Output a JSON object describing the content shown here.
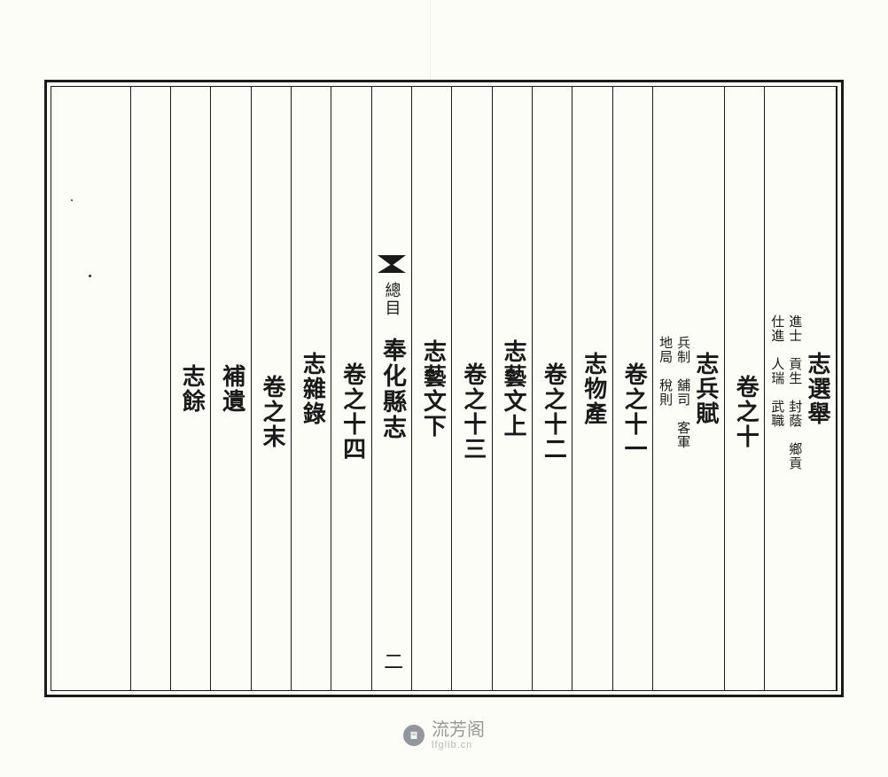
{
  "page": {
    "background_color": "#fdfdf8",
    "border_color": "#1a1a1a",
    "text_color": "#1a1a1a",
    "main_fontsize": 26,
    "sub_fontsize": 16
  },
  "columns": [
    {
      "main": "志選舉",
      "sub_rows": [
        [
          "進士",
          "貢生",
          "封蔭",
          "鄉貢"
        ],
        [
          "仕進",
          "人瑞",
          "武職",
          ""
        ]
      ]
    },
    {
      "main": "卷之十",
      "indent": true
    },
    {
      "main": "志兵賦",
      "sub_rows": [
        [
          "兵制",
          "舖司",
          "客軍"
        ],
        [
          "地局",
          "稅則",
          ""
        ]
      ]
    },
    {
      "main": "卷之十一",
      "indent": true
    },
    {
      "main": "志物產"
    },
    {
      "main": "卷之十二",
      "indent": true
    },
    {
      "main": "志藝文上"
    },
    {
      "main": "卷之十三",
      "indent": true
    },
    {
      "main": "志藝文下"
    },
    {
      "main": "奉化縣志",
      "is_center": true,
      "center_sub": "總目",
      "page_number": "二"
    },
    {
      "main": "卷之十四",
      "indent": true
    },
    {
      "main": "志雜錄"
    },
    {
      "main": "卷之末",
      "indent": true
    },
    {
      "main": "補遺"
    },
    {
      "main": "志餘"
    },
    {
      "main": ""
    },
    {
      "main": ""
    },
    {
      "main": ""
    }
  ],
  "watermark": {
    "cn": "流芳阁",
    "en": "lfglib.cn"
  }
}
